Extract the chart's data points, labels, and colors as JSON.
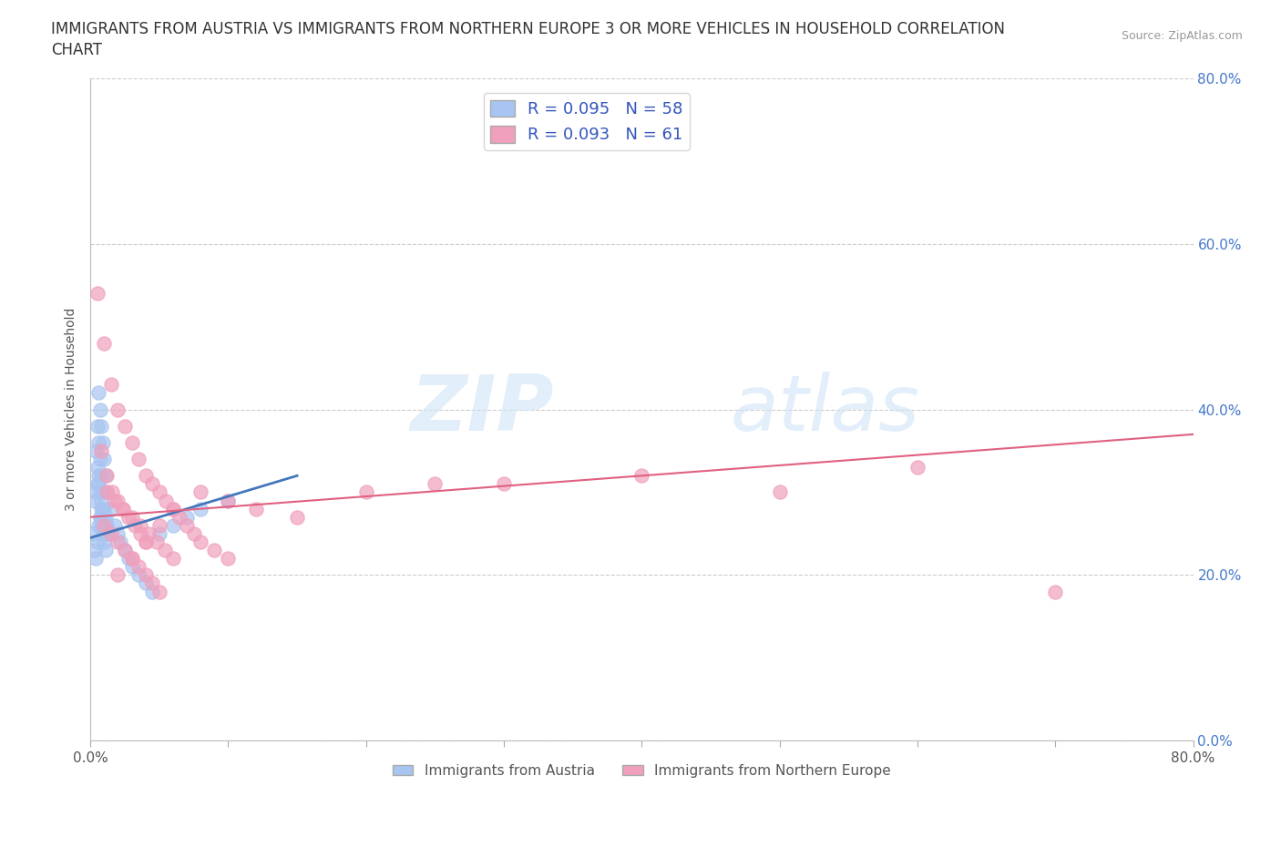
{
  "title_line1": "IMMIGRANTS FROM AUSTRIA VS IMMIGRANTS FROM NORTHERN EUROPE 3 OR MORE VEHICLES IN HOUSEHOLD CORRELATION",
  "title_line2": "CHART",
  "source": "Source: ZipAtlas.com",
  "ylabel": "3 or more Vehicles in Household",
  "xlim": [
    0.0,
    0.8
  ],
  "ylim": [
    0.0,
    0.8
  ],
  "xticks": [
    0.0,
    0.1,
    0.2,
    0.3,
    0.4,
    0.5,
    0.6,
    0.7,
    0.8
  ],
  "yticks": [
    0.0,
    0.2,
    0.4,
    0.6,
    0.8
  ],
  "color_austria": "#a8c4f0",
  "color_northern": "#f0a0bc",
  "line_color_austria": "#4477bb",
  "line_color_northern": "#e06080",
  "R_austria": 0.095,
  "N_austria": 58,
  "R_northern": 0.093,
  "N_northern": 61,
  "legend_text_color": "#3355bb",
  "watermark_zip": "ZIP",
  "watermark_atlas": "atlas",
  "austria_x": [
    0.002,
    0.003,
    0.004,
    0.005,
    0.006,
    0.007,
    0.008,
    0.009,
    0.01,
    0.003,
    0.004,
    0.005,
    0.006,
    0.007,
    0.008,
    0.009,
    0.01,
    0.011,
    0.004,
    0.005,
    0.006,
    0.007,
    0.008,
    0.009,
    0.01,
    0.011,
    0.012,
    0.005,
    0.006,
    0.007,
    0.008,
    0.009,
    0.01,
    0.011,
    0.012,
    0.013,
    0.006,
    0.007,
    0.008,
    0.009,
    0.01,
    0.011,
    0.012,
    0.015,
    0.018,
    0.02,
    0.022,
    0.025,
    0.028,
    0.03,
    0.035,
    0.04,
    0.045,
    0.05,
    0.06,
    0.07,
    0.08,
    0.1
  ],
  "austria_y": [
    0.25,
    0.23,
    0.22,
    0.24,
    0.26,
    0.27,
    0.28,
    0.26,
    0.25,
    0.29,
    0.3,
    0.31,
    0.32,
    0.27,
    0.26,
    0.25,
    0.24,
    0.23,
    0.35,
    0.33,
    0.31,
    0.3,
    0.29,
    0.28,
    0.27,
    0.26,
    0.25,
    0.38,
    0.36,
    0.34,
    0.32,
    0.3,
    0.28,
    0.27,
    0.26,
    0.25,
    0.42,
    0.4,
    0.38,
    0.36,
    0.34,
    0.32,
    0.3,
    0.28,
    0.26,
    0.25,
    0.24,
    0.23,
    0.22,
    0.21,
    0.2,
    0.19,
    0.18,
    0.25,
    0.26,
    0.27,
    0.28,
    0.29
  ],
  "northern_x": [
    0.005,
    0.01,
    0.015,
    0.02,
    0.025,
    0.03,
    0.035,
    0.04,
    0.045,
    0.05,
    0.055,
    0.06,
    0.065,
    0.07,
    0.075,
    0.08,
    0.09,
    0.1,
    0.008,
    0.012,
    0.016,
    0.02,
    0.024,
    0.028,
    0.032,
    0.036,
    0.04,
    0.01,
    0.015,
    0.02,
    0.025,
    0.03,
    0.035,
    0.04,
    0.045,
    0.05,
    0.012,
    0.018,
    0.024,
    0.03,
    0.036,
    0.042,
    0.048,
    0.054,
    0.06,
    0.02,
    0.03,
    0.04,
    0.05,
    0.06,
    0.08,
    0.1,
    0.12,
    0.15,
    0.2,
    0.25,
    0.3,
    0.4,
    0.5,
    0.6,
    0.7
  ],
  "northern_y": [
    0.54,
    0.48,
    0.43,
    0.4,
    0.38,
    0.36,
    0.34,
    0.32,
    0.31,
    0.3,
    0.29,
    0.28,
    0.27,
    0.26,
    0.25,
    0.24,
    0.23,
    0.22,
    0.35,
    0.32,
    0.3,
    0.29,
    0.28,
    0.27,
    0.26,
    0.25,
    0.24,
    0.26,
    0.25,
    0.24,
    0.23,
    0.22,
    0.21,
    0.2,
    0.19,
    0.18,
    0.3,
    0.29,
    0.28,
    0.27,
    0.26,
    0.25,
    0.24,
    0.23,
    0.22,
    0.2,
    0.22,
    0.24,
    0.26,
    0.28,
    0.3,
    0.29,
    0.28,
    0.27,
    0.3,
    0.31,
    0.31,
    0.32,
    0.3,
    0.33,
    0.18
  ],
  "austria_trend_x": [
    0.0,
    0.15
  ],
  "austria_trend_y": [
    0.245,
    0.32
  ],
  "northern_trend_x": [
    0.0,
    0.8
  ],
  "northern_trend_y": [
    0.27,
    0.37
  ]
}
